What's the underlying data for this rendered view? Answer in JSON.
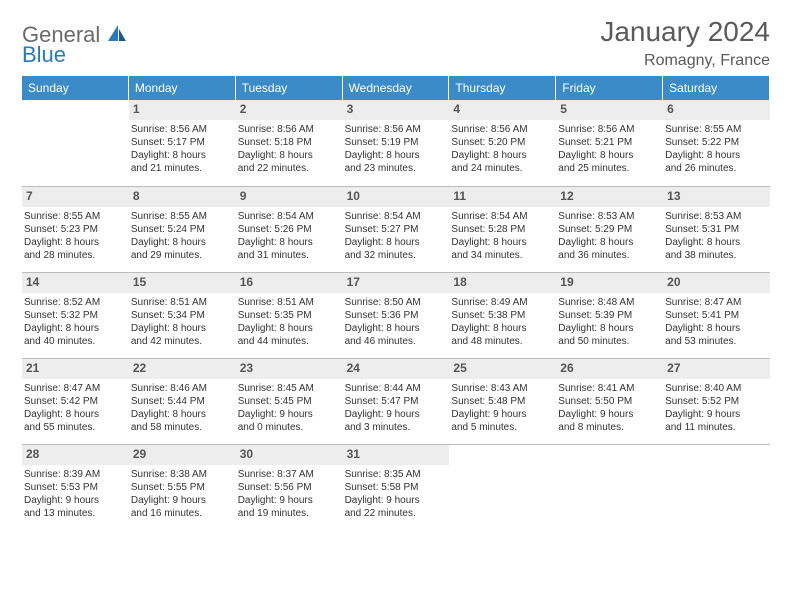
{
  "brand": {
    "part1": "General",
    "part2": "Blue"
  },
  "title": "January 2024",
  "location": "Romagny, France",
  "colors": {
    "header_bg": "#3b8bc9",
    "header_text": "#ffffff",
    "daynum_bg": "#ededed",
    "daynum_text": "#555555",
    "border": "#bcbcbc",
    "brand_gray": "#6b6b6b",
    "brand_blue": "#2a7ab9",
    "title_color": "#5a5a5a",
    "body_text": "#333333"
  },
  "weekdays": [
    "Sunday",
    "Monday",
    "Tuesday",
    "Wednesday",
    "Thursday",
    "Friday",
    "Saturday"
  ],
  "grid": [
    [
      {
        "blank": true
      },
      {
        "n": "1",
        "sr": "Sunrise: 8:56 AM",
        "ss": "Sunset: 5:17 PM",
        "d1": "Daylight: 8 hours",
        "d2": "and 21 minutes."
      },
      {
        "n": "2",
        "sr": "Sunrise: 8:56 AM",
        "ss": "Sunset: 5:18 PM",
        "d1": "Daylight: 8 hours",
        "d2": "and 22 minutes."
      },
      {
        "n": "3",
        "sr": "Sunrise: 8:56 AM",
        "ss": "Sunset: 5:19 PM",
        "d1": "Daylight: 8 hours",
        "d2": "and 23 minutes."
      },
      {
        "n": "4",
        "sr": "Sunrise: 8:56 AM",
        "ss": "Sunset: 5:20 PM",
        "d1": "Daylight: 8 hours",
        "d2": "and 24 minutes."
      },
      {
        "n": "5",
        "sr": "Sunrise: 8:56 AM",
        "ss": "Sunset: 5:21 PM",
        "d1": "Daylight: 8 hours",
        "d2": "and 25 minutes."
      },
      {
        "n": "6",
        "sr": "Sunrise: 8:55 AM",
        "ss": "Sunset: 5:22 PM",
        "d1": "Daylight: 8 hours",
        "d2": "and 26 minutes."
      }
    ],
    [
      {
        "n": "7",
        "sr": "Sunrise: 8:55 AM",
        "ss": "Sunset: 5:23 PM",
        "d1": "Daylight: 8 hours",
        "d2": "and 28 minutes."
      },
      {
        "n": "8",
        "sr": "Sunrise: 8:55 AM",
        "ss": "Sunset: 5:24 PM",
        "d1": "Daylight: 8 hours",
        "d2": "and 29 minutes."
      },
      {
        "n": "9",
        "sr": "Sunrise: 8:54 AM",
        "ss": "Sunset: 5:26 PM",
        "d1": "Daylight: 8 hours",
        "d2": "and 31 minutes."
      },
      {
        "n": "10",
        "sr": "Sunrise: 8:54 AM",
        "ss": "Sunset: 5:27 PM",
        "d1": "Daylight: 8 hours",
        "d2": "and 32 minutes."
      },
      {
        "n": "11",
        "sr": "Sunrise: 8:54 AM",
        "ss": "Sunset: 5:28 PM",
        "d1": "Daylight: 8 hours",
        "d2": "and 34 minutes."
      },
      {
        "n": "12",
        "sr": "Sunrise: 8:53 AM",
        "ss": "Sunset: 5:29 PM",
        "d1": "Daylight: 8 hours",
        "d2": "and 36 minutes."
      },
      {
        "n": "13",
        "sr": "Sunrise: 8:53 AM",
        "ss": "Sunset: 5:31 PM",
        "d1": "Daylight: 8 hours",
        "d2": "and 38 minutes."
      }
    ],
    [
      {
        "n": "14",
        "sr": "Sunrise: 8:52 AM",
        "ss": "Sunset: 5:32 PM",
        "d1": "Daylight: 8 hours",
        "d2": "and 40 minutes."
      },
      {
        "n": "15",
        "sr": "Sunrise: 8:51 AM",
        "ss": "Sunset: 5:34 PM",
        "d1": "Daylight: 8 hours",
        "d2": "and 42 minutes."
      },
      {
        "n": "16",
        "sr": "Sunrise: 8:51 AM",
        "ss": "Sunset: 5:35 PM",
        "d1": "Daylight: 8 hours",
        "d2": "and 44 minutes."
      },
      {
        "n": "17",
        "sr": "Sunrise: 8:50 AM",
        "ss": "Sunset: 5:36 PM",
        "d1": "Daylight: 8 hours",
        "d2": "and 46 minutes."
      },
      {
        "n": "18",
        "sr": "Sunrise: 8:49 AM",
        "ss": "Sunset: 5:38 PM",
        "d1": "Daylight: 8 hours",
        "d2": "and 48 minutes."
      },
      {
        "n": "19",
        "sr": "Sunrise: 8:48 AM",
        "ss": "Sunset: 5:39 PM",
        "d1": "Daylight: 8 hours",
        "d2": "and 50 minutes."
      },
      {
        "n": "20",
        "sr": "Sunrise: 8:47 AM",
        "ss": "Sunset: 5:41 PM",
        "d1": "Daylight: 8 hours",
        "d2": "and 53 minutes."
      }
    ],
    [
      {
        "n": "21",
        "sr": "Sunrise: 8:47 AM",
        "ss": "Sunset: 5:42 PM",
        "d1": "Daylight: 8 hours",
        "d2": "and 55 minutes."
      },
      {
        "n": "22",
        "sr": "Sunrise: 8:46 AM",
        "ss": "Sunset: 5:44 PM",
        "d1": "Daylight: 8 hours",
        "d2": "and 58 minutes."
      },
      {
        "n": "23",
        "sr": "Sunrise: 8:45 AM",
        "ss": "Sunset: 5:45 PM",
        "d1": "Daylight: 9 hours",
        "d2": "and 0 minutes."
      },
      {
        "n": "24",
        "sr": "Sunrise: 8:44 AM",
        "ss": "Sunset: 5:47 PM",
        "d1": "Daylight: 9 hours",
        "d2": "and 3 minutes."
      },
      {
        "n": "25",
        "sr": "Sunrise: 8:43 AM",
        "ss": "Sunset: 5:48 PM",
        "d1": "Daylight: 9 hours",
        "d2": "and 5 minutes."
      },
      {
        "n": "26",
        "sr": "Sunrise: 8:41 AM",
        "ss": "Sunset: 5:50 PM",
        "d1": "Daylight: 9 hours",
        "d2": "and 8 minutes."
      },
      {
        "n": "27",
        "sr": "Sunrise: 8:40 AM",
        "ss": "Sunset: 5:52 PM",
        "d1": "Daylight: 9 hours",
        "d2": "and 11 minutes."
      }
    ],
    [
      {
        "n": "28",
        "sr": "Sunrise: 8:39 AM",
        "ss": "Sunset: 5:53 PM",
        "d1": "Daylight: 9 hours",
        "d2": "and 13 minutes."
      },
      {
        "n": "29",
        "sr": "Sunrise: 8:38 AM",
        "ss": "Sunset: 5:55 PM",
        "d1": "Daylight: 9 hours",
        "d2": "and 16 minutes."
      },
      {
        "n": "30",
        "sr": "Sunrise: 8:37 AM",
        "ss": "Sunset: 5:56 PM",
        "d1": "Daylight: 9 hours",
        "d2": "and 19 minutes."
      },
      {
        "n": "31",
        "sr": "Sunrise: 8:35 AM",
        "ss": "Sunset: 5:58 PM",
        "d1": "Daylight: 9 hours",
        "d2": "and 22 minutes."
      },
      {
        "blank": true
      },
      {
        "blank": true
      },
      {
        "blank": true
      }
    ]
  ]
}
